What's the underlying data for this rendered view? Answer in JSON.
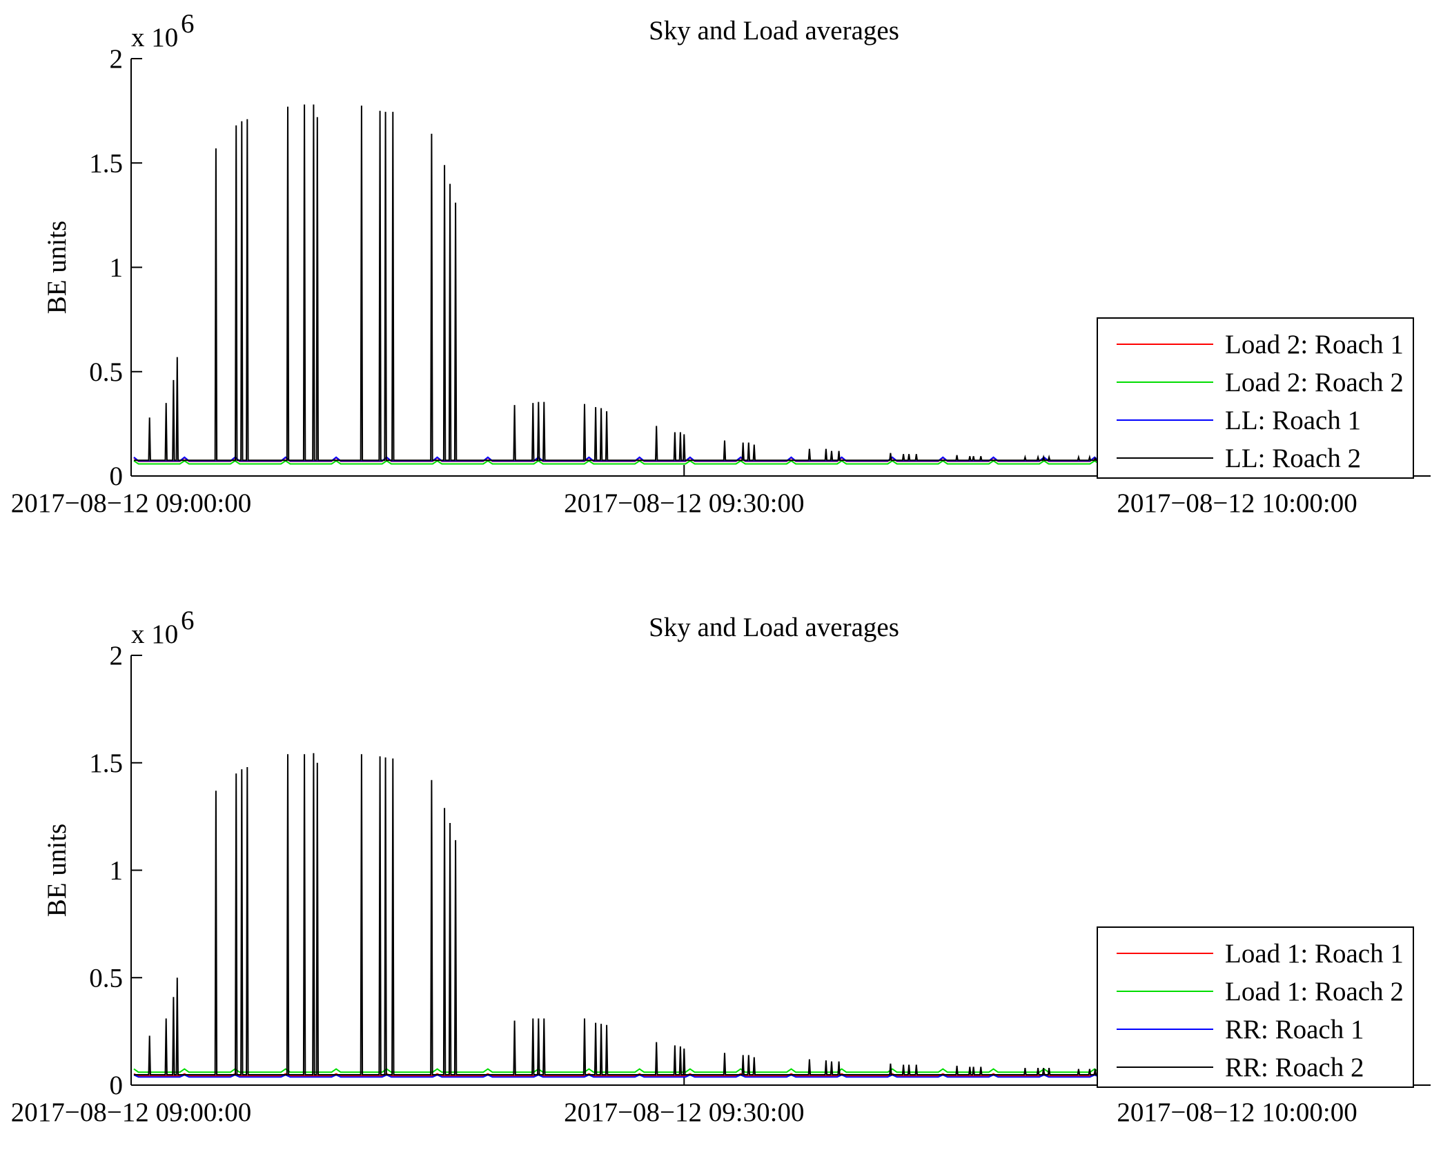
{
  "chart_data": [
    {
      "type": "line",
      "title": "Sky and Load averages",
      "ylabel": "BE units",
      "y_multiplier_label": "x 10",
      "y_multiplier_exponent": "6",
      "y_multiplier": 1000000,
      "ylim": [
        0,
        2000000
      ],
      "yticks": [
        0,
        500000,
        1000000,
        1500000,
        2000000
      ],
      "ytick_labels": [
        "0",
        "0.5",
        "1",
        "1.5",
        "2"
      ],
      "x_unit": "minutes after 2017-08-12 09:00:00",
      "xlim": [
        0,
        70.5
      ],
      "xticks": [
        0,
        30,
        60
      ],
      "xtick_labels": [
        "2017−08−12 09:00:00",
        "2017−08−12 09:30:00",
        "2017−08−12 10:00:00"
      ],
      "legend_position": "lower-right",
      "series": [
        {
          "name": "Load 2: Roach 1",
          "color": "#ff0000",
          "baseline": 70000,
          "x_end": 60
        },
        {
          "name": "Load 2: Roach 2",
          "color": "#00dd00",
          "baseline": 58000,
          "x_end": 60
        },
        {
          "name": "LL: Roach 1",
          "color": "#0000ff",
          "baseline": 72000,
          "x_end": 60
        },
        {
          "name": "LL: Roach 2",
          "color": "#000000",
          "baseline": 75000,
          "x_end": 60,
          "spikes": [
            [
              1.0,
              280000
            ],
            [
              1.9,
              350000
            ],
            [
              2.3,
              460000
            ],
            [
              2.5,
              570000
            ],
            [
              4.6,
              1570000
            ],
            [
              5.7,
              1680000
            ],
            [
              6.0,
              1700000
            ],
            [
              6.3,
              1710000
            ],
            [
              8.5,
              1770000
            ],
            [
              9.4,
              1780000
            ],
            [
              9.9,
              1780000
            ],
            [
              10.1,
              1720000
            ],
            [
              12.5,
              1775000
            ],
            [
              13.5,
              1750000
            ],
            [
              13.8,
              1745000
            ],
            [
              14.2,
              1745000
            ],
            [
              16.3,
              1640000
            ],
            [
              17.0,
              1490000
            ],
            [
              17.3,
              1400000
            ],
            [
              17.6,
              1310000
            ],
            [
              20.8,
              340000
            ],
            [
              21.8,
              350000
            ],
            [
              22.1,
              355000
            ],
            [
              22.4,
              355000
            ],
            [
              24.6,
              345000
            ],
            [
              25.2,
              330000
            ],
            [
              25.5,
              325000
            ],
            [
              25.8,
              310000
            ],
            [
              28.5,
              240000
            ],
            [
              29.5,
              210000
            ],
            [
              29.8,
              210000
            ],
            [
              30.0,
              200000
            ],
            [
              32.2,
              170000
            ],
            [
              33.2,
              160000
            ],
            [
              33.5,
              160000
            ],
            [
              33.8,
              150000
            ],
            [
              36.8,
              130000
            ],
            [
              37.7,
              130000
            ],
            [
              38.0,
              120000
            ],
            [
              38.4,
              120000
            ],
            [
              41.2,
              110000
            ],
            [
              41.9,
              105000
            ],
            [
              42.2,
              105000
            ],
            [
              42.6,
              105000
            ],
            [
              44.8,
              100000
            ],
            [
              45.5,
              95000
            ],
            [
              45.7,
              95000
            ],
            [
              46.1,
              95000
            ],
            [
              48.5,
              90000
            ],
            [
              49.2,
              90000
            ],
            [
              49.5,
              90000
            ],
            [
              49.8,
              90000
            ],
            [
              51.4,
              90000
            ],
            [
              52.0,
              90000
            ],
            [
              52.3,
              85000
            ],
            [
              52.6,
              85000
            ]
          ]
        }
      ]
    },
    {
      "type": "line",
      "title": "Sky and Load averages",
      "ylabel": "BE units",
      "y_multiplier_label": "x 10",
      "y_multiplier_exponent": "6",
      "y_multiplier": 1000000,
      "ylim": [
        0,
        2000000
      ],
      "yticks": [
        0,
        500000,
        1000000,
        1500000,
        2000000
      ],
      "ytick_labels": [
        "0",
        "0.5",
        "1",
        "1.5",
        "2"
      ],
      "x_unit": "minutes after 2017-08-12 09:00:00",
      "xlim": [
        0,
        70.5
      ],
      "xticks": [
        0,
        30,
        60
      ],
      "xtick_labels": [
        "2017−08−12 09:00:00",
        "2017−08−12 09:30:00",
        "2017−08−12 10:00:00"
      ],
      "legend_position": "lower-right",
      "series": [
        {
          "name": "Load 1: Roach 1",
          "color": "#ff0000",
          "baseline": 42000,
          "x_end": 60
        },
        {
          "name": "Load 1: Roach 2",
          "color": "#00dd00",
          "baseline": 60000,
          "x_end": 60
        },
        {
          "name": "RR: Roach 1",
          "color": "#0000ff",
          "baseline": 38000,
          "x_end": 60
        },
        {
          "name": "RR: Roach 2",
          "color": "#000000",
          "baseline": 48000,
          "x_end": 60,
          "spikes": [
            [
              1.0,
              230000
            ],
            [
              1.9,
              310000
            ],
            [
              2.3,
              410000
            ],
            [
              2.5,
              500000
            ],
            [
              4.6,
              1370000
            ],
            [
              5.7,
              1450000
            ],
            [
              6.0,
              1470000
            ],
            [
              6.3,
              1480000
            ],
            [
              8.5,
              1540000
            ],
            [
              9.4,
              1540000
            ],
            [
              9.9,
              1545000
            ],
            [
              10.1,
              1500000
            ],
            [
              12.5,
              1540000
            ],
            [
              13.5,
              1530000
            ],
            [
              13.8,
              1525000
            ],
            [
              14.2,
              1520000
            ],
            [
              16.3,
              1420000
            ],
            [
              17.0,
              1290000
            ],
            [
              17.3,
              1220000
            ],
            [
              17.6,
              1140000
            ],
            [
              20.8,
              300000
            ],
            [
              21.8,
              310000
            ],
            [
              22.1,
              310000
            ],
            [
              22.4,
              310000
            ],
            [
              24.6,
              310000
            ],
            [
              25.2,
              290000
            ],
            [
              25.5,
              285000
            ],
            [
              25.8,
              280000
            ],
            [
              28.5,
              200000
            ],
            [
              29.5,
              185000
            ],
            [
              29.8,
              180000
            ],
            [
              30.0,
              170000
            ],
            [
              32.2,
              150000
            ],
            [
              33.2,
              140000
            ],
            [
              33.5,
              140000
            ],
            [
              33.8,
              130000
            ],
            [
              36.8,
              120000
            ],
            [
              37.7,
              115000
            ],
            [
              38.0,
              110000
            ],
            [
              38.4,
              110000
            ],
            [
              41.2,
              100000
            ],
            [
              41.9,
              95000
            ],
            [
              42.2,
              95000
            ],
            [
              42.6,
              95000
            ],
            [
              44.8,
              90000
            ],
            [
              45.5,
              85000
            ],
            [
              45.7,
              85000
            ],
            [
              46.1,
              85000
            ],
            [
              48.5,
              80000
            ],
            [
              49.2,
              80000
            ],
            [
              49.5,
              80000
            ],
            [
              49.8,
              80000
            ],
            [
              51.4,
              75000
            ],
            [
              52.0,
              75000
            ],
            [
              52.3,
              75000
            ],
            [
              52.6,
              75000
            ]
          ]
        }
      ]
    }
  ]
}
